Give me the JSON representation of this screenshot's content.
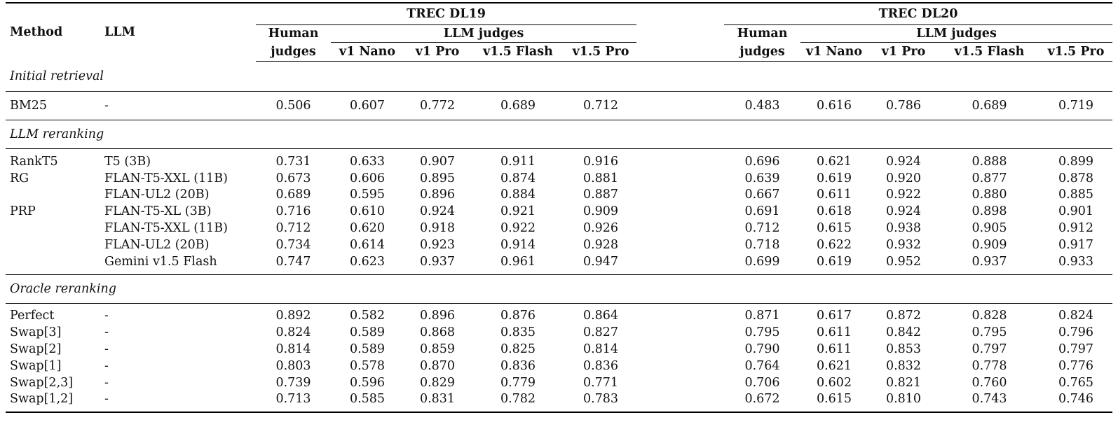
{
  "header": {
    "method": "Method",
    "llm": "LLM",
    "groups": [
      "TREC DL19",
      "TREC DL20"
    ],
    "human_judges_line1": "Human",
    "human_judges_line2": "judges",
    "llm_judges": "LLM judges",
    "judge_cols": [
      "v1 Nano",
      "v1 Pro",
      "v1.5 Flash",
      "v1.5 Pro"
    ]
  },
  "sections": [
    {
      "title": "Initial retrieval",
      "rows": [
        {
          "method": "BM25",
          "llm": "-",
          "values": [
            "0.506",
            "0.607",
            "0.772",
            "0.689",
            "0.712",
            "0.483",
            "0.616",
            "0.786",
            "0.689",
            "0.719"
          ],
          "bold": []
        }
      ]
    },
    {
      "title": "LLM reranking",
      "rows": [
        {
          "method": "RankT5",
          "llm": "T5 (3B)",
          "values": [
            "0.731",
            "0.633",
            "0.907",
            "0.911",
            "0.916",
            "0.696",
            "0.621",
            "0.924",
            "0.888",
            "0.899"
          ],
          "bold": [
            1
          ]
        },
        {
          "method": "RG",
          "llm": "FLAN-T5-XXL (11B)",
          "values": [
            "0.673",
            "0.606",
            "0.895",
            "0.874",
            "0.881",
            "0.639",
            "0.619",
            "0.920",
            "0.877",
            "0.878"
          ],
          "bold": []
        },
        {
          "method": "",
          "llm": "FLAN-UL2 (20B)",
          "values": [
            "0.689",
            "0.595",
            "0.896",
            "0.884",
            "0.887",
            "0.667",
            "0.611",
            "0.922",
            "0.880",
            "0.885"
          ],
          "bold": []
        },
        {
          "method": "PRP",
          "llm": "FLAN-T5-XL (3B)",
          "values": [
            "0.716",
            "0.610",
            "0.924",
            "0.921",
            "0.909",
            "0.691",
            "0.618",
            "0.924",
            "0.898",
            "0.901"
          ],
          "bold": []
        },
        {
          "method": "",
          "llm": "FLAN-T5-XXL (11B)",
          "values": [
            "0.712",
            "0.620",
            "0.918",
            "0.922",
            "0.926",
            "0.712",
            "0.615",
            "0.938",
            "0.905",
            "0.912"
          ],
          "bold": []
        },
        {
          "method": "",
          "llm": "FLAN-UL2 (20B)",
          "values": [
            "0.734",
            "0.614",
            "0.923",
            "0.914",
            "0.928",
            "0.718",
            "0.622",
            "0.932",
            "0.909",
            "0.917"
          ],
          "bold": [
            5,
            6
          ]
        },
        {
          "method": "",
          "llm": "Gemini v1.5 Flash",
          "values": [
            "0.747",
            "0.623",
            "0.937",
            "0.961",
            "0.947",
            "0.699",
            "0.619",
            "0.952",
            "0.937",
            "0.933"
          ],
          "bold": [
            0,
            2,
            3,
            4,
            7,
            8,
            9
          ]
        }
      ]
    },
    {
      "title": "Oracle reranking",
      "rows": [
        {
          "method": "Perfect",
          "llm": "-",
          "values": [
            "0.892",
            "0.582",
            "0.896",
            "0.876",
            "0.864",
            "0.871",
            "0.617",
            "0.872",
            "0.828",
            "0.824"
          ],
          "bold": [
            0,
            2,
            3,
            4,
            5,
            7,
            8,
            9
          ]
        },
        {
          "method": "Swap[3]",
          "llm": "-",
          "values": [
            "0.824",
            "0.589",
            "0.868",
            "0.835",
            "0.827",
            "0.795",
            "0.611",
            "0.842",
            "0.795",
            "0.796"
          ],
          "bold": []
        },
        {
          "method": "Swap[2]",
          "llm": "-",
          "values": [
            "0.814",
            "0.589",
            "0.859",
            "0.825",
            "0.814",
            "0.790",
            "0.611",
            "0.853",
            "0.797",
            "0.797"
          ],
          "bold": []
        },
        {
          "method": "Swap[1]",
          "llm": "-",
          "values": [
            "0.803",
            "0.578",
            "0.870",
            "0.836",
            "0.836",
            "0.764",
            "0.621",
            "0.832",
            "0.778",
            "0.776"
          ],
          "bold": [
            6
          ]
        },
        {
          "method": "Swap[2,3]",
          "llm": "-",
          "values": [
            "0.739",
            "0.596",
            "0.829",
            "0.779",
            "0.771",
            "0.706",
            "0.602",
            "0.821",
            "0.760",
            "0.765"
          ],
          "bold": [
            1
          ]
        },
        {
          "method": "Swap[1,2]",
          "llm": "-",
          "values": [
            "0.713",
            "0.585",
            "0.831",
            "0.782",
            "0.783",
            "0.672",
            "0.615",
            "0.810",
            "0.743",
            "0.746"
          ],
          "bold": []
        }
      ]
    }
  ]
}
